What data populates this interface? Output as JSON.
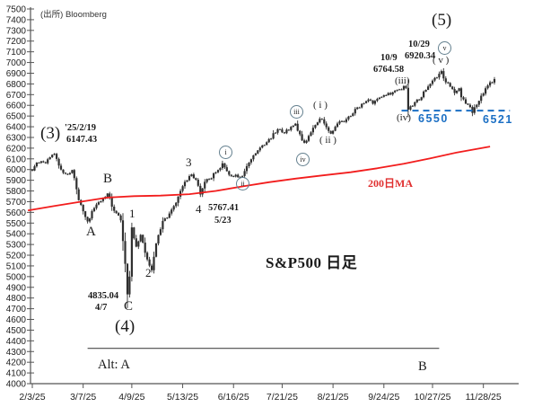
{
  "title": "S&P500 日足",
  "source": "(出所) Bloomberg",
  "colors": {
    "ma_line": "#f21d1d",
    "blue_level": "#1b6fc4",
    "candle": "#2f2f2f",
    "axis": "#555555",
    "circle_border": "#64808f"
  },
  "chart_data": {
    "type": "candlestick",
    "symbol": "S&P500",
    "timeframe": "daily",
    "title": "S&P500 日足",
    "y_axis": {
      "min": 4000,
      "max": 7500,
      "step": 100
    },
    "x_ticks": [
      {
        "label": "2/3/25",
        "d": 0
      },
      {
        "label": "3/7/25",
        "d": 23
      },
      {
        "label": "4/9/25",
        "d": 45
      },
      {
        "label": "5/13/25",
        "d": 68
      },
      {
        "label": "6/16/25",
        "d": 91
      },
      {
        "label": "7/21/25",
        "d": 113
      },
      {
        "label": "8/21/25",
        "d": 136
      },
      {
        "label": "9/24/25",
        "d": 159
      },
      {
        "label": "10/27/25",
        "d": 181
      },
      {
        "label": "11/28/25",
        "d": 204
      }
    ],
    "n_candles": 210,
    "key_points": {
      "wave3_top": {
        "date": "25/2/19",
        "price": 6147.43
      },
      "wave4_low": {
        "date": "4/7",
        "price": 4835.04
      },
      "sub4_low": {
        "date": "5/23",
        "price": 5767.41
      },
      "wave_iii_top": {
        "date": "10/9",
        "price": 6764.58
      },
      "wave_v_top": {
        "date": "10/29",
        "price": 6920.34
      },
      "wave_iv_low": {
        "price": 6550
      },
      "nov_low": {
        "price": 6521
      }
    },
    "price_path": [
      [
        0,
        5990
      ],
      [
        2,
        6065
      ],
      [
        6,
        6060
      ],
      [
        8,
        6115
      ],
      [
        10,
        6147
      ],
      [
        13,
        6000
      ],
      [
        16,
        5955
      ],
      [
        18,
        5995
      ],
      [
        21,
        5715
      ],
      [
        25,
        5515
      ],
      [
        28,
        5640
      ],
      [
        31,
        5705
      ],
      [
        34,
        5776
      ],
      [
        37,
        5615
      ],
      [
        40,
        5525
      ],
      [
        42,
        5120
      ],
      [
        43,
        4835
      ],
      [
        44,
        5000
      ],
      [
        45,
        5460
      ],
      [
        47,
        5280
      ],
      [
        49,
        5390
      ],
      [
        52,
        5160
      ],
      [
        54,
        5060
      ],
      [
        56,
        5310
      ],
      [
        59,
        5520
      ],
      [
        62,
        5590
      ],
      [
        65,
        5690
      ],
      [
        68,
        5845
      ],
      [
        70,
        5900
      ],
      [
        72,
        5955
      ],
      [
        74,
        5905
      ],
      [
        76,
        5767
      ],
      [
        78,
        5885
      ],
      [
        80,
        5910
      ],
      [
        83,
        5975
      ],
      [
        86,
        6059
      ],
      [
        88,
        5985
      ],
      [
        91,
        5935
      ],
      [
        95,
        5940
      ],
      [
        98,
        6065
      ],
      [
        101,
        6150
      ],
      [
        104,
        6225
      ],
      [
        107,
        6285
      ],
      [
        110,
        6345
      ],
      [
        112,
        6375
      ],
      [
        114,
        6340
      ],
      [
        117,
        6400
      ],
      [
        119,
        6427
      ],
      [
        121,
        6330
      ],
      [
        123,
        6250
      ],
      [
        125,
        6315
      ],
      [
        127,
        6390
      ],
      [
        129,
        6440
      ],
      [
        131,
        6470
      ],
      [
        133,
        6395
      ],
      [
        135,
        6335
      ],
      [
        137,
        6400
      ],
      [
        139,
        6450
      ],
      [
        142,
        6470
      ],
      [
        144,
        6500
      ],
      [
        147,
        6580
      ],
      [
        150,
        6620
      ],
      [
        152,
        6655
      ],
      [
        154,
        6615
      ],
      [
        156,
        6660
      ],
      [
        159,
        6695
      ],
      [
        161,
        6715
      ],
      [
        164,
        6735
      ],
      [
        166,
        6750
      ],
      [
        169,
        6764
      ],
      [
        170,
        6560
      ],
      [
        172,
        6595
      ],
      [
        174,
        6655
      ],
      [
        176,
        6675
      ],
      [
        178,
        6745
      ],
      [
        180,
        6800
      ],
      [
        182,
        6855
      ],
      [
        184,
        6895
      ],
      [
        185,
        6920
      ],
      [
        187,
        6815
      ],
      [
        189,
        6775
      ],
      [
        191,
        6715
      ],
      [
        193,
        6760
      ],
      [
        194,
        6675
      ],
      [
        196,
        6615
      ],
      [
        198,
        6585
      ],
      [
        199,
        6530
      ],
      [
        201,
        6605
      ],
      [
        203,
        6690
      ],
      [
        205,
        6760
      ],
      [
        207,
        6815
      ],
      [
        209,
        6845
      ]
    ],
    "ma200": [
      [
        -2,
        5618
      ],
      [
        10,
        5660
      ],
      [
        22,
        5700
      ],
      [
        34,
        5738
      ],
      [
        46,
        5752
      ],
      [
        58,
        5757
      ],
      [
        71,
        5770
      ],
      [
        83,
        5800
      ],
      [
        95,
        5842
      ],
      [
        107,
        5882
      ],
      [
        119,
        5915
      ],
      [
        131,
        5945
      ],
      [
        144,
        5975
      ],
      [
        156,
        6012
      ],
      [
        168,
        6055
      ],
      [
        180,
        6105
      ],
      [
        192,
        6160
      ],
      [
        207,
        6215
      ]
    ],
    "level_line": {
      "price": 6550,
      "d_start": 167,
      "d_end": 216,
      "style": "dashed"
    },
    "alt_line": {
      "price": 4330,
      "d_start": 25,
      "d_end": 184,
      "style": "solid"
    }
  },
  "annotations": {
    "wave3_label": "(3)",
    "wave3_date": "'25/2/19",
    "wave3_price": "6147.43",
    "wave_a": "A",
    "wave_b": "B",
    "wave_c": "C",
    "sub1": "1",
    "sub2": "2",
    "sub3": "3",
    "sub4": "4",
    "low_c_price": "4835.04",
    "low_c_date": "4/7",
    "wave4_label": "(4)",
    "low4_price": "5767.41",
    "low4_date": "5/23",
    "circ_i": "i",
    "circ_ii": "ii",
    "circ_iii": "iii",
    "circ_iv": "iv",
    "circ_v": "v",
    "min_i": "( i )",
    "min_ii": "( ii )",
    "min_iii": "(iii)",
    "min_iv": "(iv)",
    "min_v": "( v )",
    "peak1_date": "10/9",
    "peak1_price": "6764.58",
    "peak2_date": "10/29",
    "peak2_price": "6920.34",
    "wave5_label": "(5)",
    "level_6550": "6550",
    "level_6521": "6521",
    "ma_label": "200日MA",
    "alt_a": "Alt: A",
    "alt_b": "B"
  }
}
